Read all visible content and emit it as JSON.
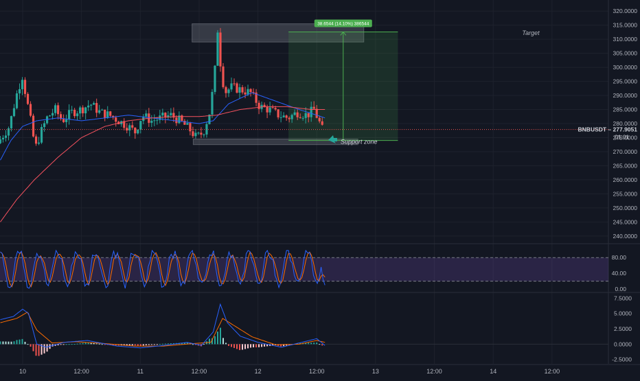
{
  "symbol": "BNBUSDT",
  "last_price": "277.9051",
  "countdown": "01:01",
  "annotations": {
    "target": "Target",
    "support": "Support zone",
    "measure": "38.6544 (14.10%) 386544"
  },
  "colors": {
    "background": "#131722",
    "up": "#26a69a",
    "down": "#ef5350",
    "ma_fast": "#2962ff",
    "ma_slow": "#f7525f",
    "stoch_k": "#2962ff",
    "stoch_d": "#ff6d00",
    "stoch_band": "#7e57c2",
    "target_green": "#4caf50"
  },
  "chart_data": [
    {
      "type": "line",
      "panel": "price",
      "ylim": [
        238,
        322
      ],
      "y_ticks": [
        "320.0000",
        "315.0000",
        "310.0000",
        "305.0000",
        "300.0000",
        "295.0000",
        "290.0000",
        "285.0000",
        "280.0000",
        "275.0000",
        "270.0000",
        "265.0000",
        "260.0000",
        "255.0000",
        "250.0000",
        "245.0000",
        "240.0000"
      ],
      "x_ticks": [
        "10",
        "12:00",
        "11",
        "12:00",
        "12",
        "12:00",
        "13",
        "12:00",
        "14",
        "12:00"
      ],
      "x_tick_days": [
        0,
        0.5,
        1,
        1.5,
        2,
        2.5,
        3,
        3.5,
        4,
        4.5
      ],
      "candle_days_range": [
        -0.19,
        2.57
      ],
      "price_key_points": [
        [
          -0.19,
          273
        ],
        [
          -0.09,
          279
        ],
        [
          -0.03,
          290
        ],
        [
          0.02,
          297
        ],
        [
          0.06,
          288
        ],
        [
          0.1,
          279
        ],
        [
          0.13,
          271
        ],
        [
          0.18,
          277
        ],
        [
          0.23,
          282
        ],
        [
          0.3,
          285
        ],
        [
          0.36,
          281
        ],
        [
          0.44,
          284
        ],
        [
          0.52,
          285
        ],
        [
          0.6,
          287
        ],
        [
          0.68,
          284
        ],
        [
          0.76,
          283
        ],
        [
          0.84,
          281
        ],
        [
          0.92,
          279
        ],
        [
          0.98,
          277
        ],
        [
          1.04,
          283
        ],
        [
          1.12,
          281
        ],
        [
          1.2,
          282
        ],
        [
          1.28,
          283
        ],
        [
          1.36,
          281
        ],
        [
          1.44,
          278
        ],
        [
          1.5,
          275
        ],
        [
          1.56,
          277
        ],
        [
          1.62,
          285
        ],
        [
          1.66,
          300
        ],
        [
          1.68,
          314
        ],
        [
          1.7,
          303
        ],
        [
          1.74,
          291
        ],
        [
          1.8,
          293
        ],
        [
          1.88,
          292
        ],
        [
          1.96,
          291
        ],
        [
          2.04,
          286
        ],
        [
          2.12,
          285
        ],
        [
          2.2,
          283
        ],
        [
          2.28,
          282
        ],
        [
          2.36,
          284
        ],
        [
          2.44,
          283
        ],
        [
          2.5,
          285
        ],
        [
          2.57,
          278
        ]
      ],
      "series": [
        {
          "key": "ma_fast",
          "key_points": [
            [
              -0.19,
              267
            ],
            [
              -0.1,
              274
            ],
            [
              0.0,
              279
            ],
            [
              0.12,
              281
            ],
            [
              0.3,
              282
            ],
            [
              0.5,
              281
            ],
            [
              0.7,
              282
            ],
            [
              0.9,
              283
            ],
            [
              1.1,
              282
            ],
            [
              1.3,
              281
            ],
            [
              1.5,
              280
            ],
            [
              1.62,
              281
            ],
            [
              1.75,
              287
            ],
            [
              1.95,
              291
            ],
            [
              2.15,
              288
            ],
            [
              2.35,
              285
            ],
            [
              2.5,
              283
            ],
            [
              2.57,
              282
            ]
          ]
        },
        {
          "key": "ma_slow",
          "key_points": [
            [
              -0.19,
              245
            ],
            [
              -0.05,
              253
            ],
            [
              0.1,
              260
            ],
            [
              0.3,
              268
            ],
            [
              0.5,
              275
            ],
            [
              0.7,
              279
            ],
            [
              0.9,
              281
            ],
            [
              1.1,
              282
            ],
            [
              1.3,
              282.5
            ],
            [
              1.5,
              282.5
            ],
            [
              1.65,
              283
            ],
            [
              1.85,
              285
            ],
            [
              2.05,
              286
            ],
            [
              2.25,
              286
            ],
            [
              2.45,
              285
            ],
            [
              2.57,
              285
            ]
          ]
        }
      ],
      "target_zone": {
        "x": [
          1.44,
          2.9
        ],
        "y": [
          309,
          315.5
        ]
      },
      "support_zone": {
        "x": [
          1.45,
          2.85
        ],
        "y": [
          272.5,
          274.5
        ]
      },
      "measure_box": {
        "x": [
          2.26,
          3.19
        ],
        "y": [
          274,
          312.6
        ]
      }
    },
    {
      "type": "line",
      "panel": "stochastic_rsi",
      "ylim": [
        -5,
        110
      ],
      "band": [
        20,
        80
      ],
      "y_ticks": [
        "80.00",
        "40.00",
        "0.00"
      ]
    },
    {
      "type": "bar",
      "panel": "macd",
      "ylim": [
        -3.2,
        8.2
      ],
      "y_ticks": [
        "7.5000",
        "5.0000",
        "2.5000",
        "0.0000",
        "-2.5000"
      ],
      "macd_key_points": [
        [
          -0.19,
          4
        ],
        [
          -0.08,
          4.5
        ],
        [
          0.0,
          5.7
        ],
        [
          0.05,
          5.0
        ],
        [
          0.12,
          0
        ],
        [
          0.2,
          -0.5
        ],
        [
          0.35,
          0.3
        ],
        [
          0.55,
          0.6
        ],
        [
          0.8,
          -0.3
        ],
        [
          1.0,
          -0.6
        ],
        [
          1.2,
          -0.2
        ],
        [
          1.4,
          0.3
        ],
        [
          1.52,
          -0.2
        ],
        [
          1.62,
          2
        ],
        [
          1.68,
          6.5
        ],
        [
          1.74,
          3.5
        ],
        [
          1.85,
          1.3
        ],
        [
          2.0,
          0.3
        ],
        [
          2.2,
          -0.5
        ],
        [
          2.35,
          0.2
        ],
        [
          2.5,
          0.9
        ],
        [
          2.57,
          -0.2
        ]
      ],
      "signal_key_points": [
        [
          -0.19,
          3.5
        ],
        [
          -0.05,
          4.2
        ],
        [
          0.04,
          5.2
        ],
        [
          0.12,
          2.3
        ],
        [
          0.25,
          0.2
        ],
        [
          0.45,
          0.4
        ],
        [
          0.7,
          0.1
        ],
        [
          0.95,
          -0.3
        ],
        [
          1.2,
          -0.3
        ],
        [
          1.45,
          0.1
        ],
        [
          1.6,
          0.3
        ],
        [
          1.7,
          4.2
        ],
        [
          1.8,
          3.0
        ],
        [
          1.95,
          1.2
        ],
        [
          2.15,
          -0.1
        ],
        [
          2.35,
          0.0
        ],
        [
          2.5,
          0.6
        ],
        [
          2.57,
          0.3
        ]
      ]
    }
  ]
}
